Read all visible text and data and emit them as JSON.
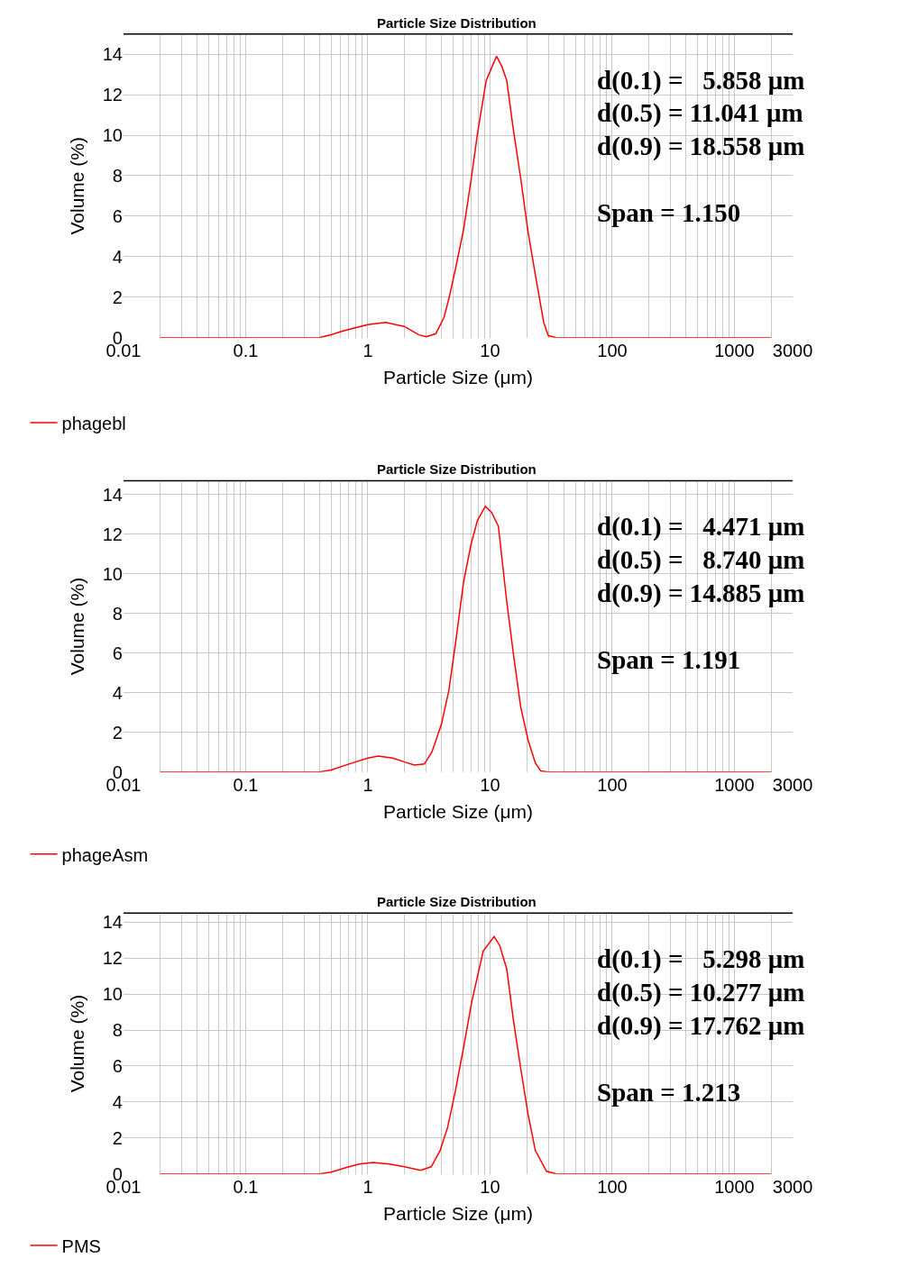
{
  "chart_data": [
    {
      "type": "line",
      "title": "Particle Size Distribution",
      "xlabel": "Particle Size (μm)",
      "ylabel": "Volume (%)",
      "log": "x",
      "xlim": [
        0.01,
        3000
      ],
      "xticks": [
        0.01,
        0.1,
        1,
        10,
        100,
        1000,
        3000
      ],
      "ylim": [
        0,
        15
      ],
      "yticks": [
        0,
        2,
        4,
        6,
        8,
        10,
        12,
        14
      ],
      "grid": true,
      "legend": "bottom",
      "marker": "none",
      "series": [
        {
          "name": "phagebl",
          "color": "#ff0000",
          "x": [
            0.02,
            0.4,
            0.5,
            0.6,
            0.8,
            1.0,
            1.4,
            2.0,
            2.6,
            3.0,
            3.6,
            4.2,
            4.62,
            5.3,
            6.08,
            7.0,
            7.9,
            9.3,
            11.3,
            12.5,
            13.7,
            15.5,
            17.8,
            20.5,
            23.5,
            27.5,
            30,
            35,
            2000
          ],
          "values": [
            0,
            0,
            0.15,
            0.3,
            0.5,
            0.65,
            0.76,
            0.55,
            0.15,
            0.05,
            0.2,
            1.0,
            1.96,
            3.6,
            5.36,
            7.8,
            10.1,
            12.7,
            13.9,
            13.4,
            12.7,
            10.3,
            7.9,
            5.2,
            3.1,
            0.76,
            0.1,
            0,
            0
          ]
        }
      ],
      "annotations": [
        "d(0.1) =   5.858 μm",
        "d(0.5) = 11.041 μm",
        "d(0.9) = 18.558 μm",
        "Span = 1.150"
      ]
    },
    {
      "type": "line",
      "title": "Particle Size Distribution",
      "xlabel": "Particle Size (μm)",
      "ylabel": "Volume (%)",
      "log": "x",
      "xlim": [
        0.01,
        3000
      ],
      "xticks": [
        0.01,
        0.1,
        1,
        10,
        100,
        1000,
        3000
      ],
      "ylim": [
        0,
        14.7
      ],
      "yticks": [
        0,
        2,
        4,
        6,
        8,
        10,
        12,
        14
      ],
      "grid": true,
      "legend": "bottom",
      "marker": "none",
      "series": [
        {
          "name": "phageAsm",
          "color": "#ff0000",
          "x": [
            0.02,
            0.4,
            0.5,
            0.7,
            1.0,
            1.22,
            1.6,
            2.0,
            2.4,
            2.9,
            3.34,
            4.0,
            4.6,
            5.3,
            6.08,
            7.0,
            7.9,
            9.15,
            10.3,
            11.7,
            13.7,
            15.5,
            17.8,
            20.5,
            23.5,
            26,
            30,
            2000
          ],
          "values": [
            0,
            0,
            0.1,
            0.4,
            0.7,
            0.8,
            0.7,
            0.5,
            0.35,
            0.4,
            1.0,
            2.4,
            4.1,
            6.8,
            9.6,
            11.5,
            12.7,
            13.4,
            13.1,
            12.4,
            8.6,
            6.0,
            3.3,
            1.6,
            0.45,
            0.05,
            0,
            0
          ]
        }
      ],
      "annotations": [
        "d(0.1) =   4.471 μm",
        "d(0.5) =   8.740 μm",
        "d(0.9) = 14.885 μm",
        "Span = 1.191"
      ]
    },
    {
      "type": "line",
      "title": "Particle Size Distribution",
      "xlabel": "Particle Size (μm)",
      "ylabel": "Volume (%)",
      "log": "x",
      "xlim": [
        0.01,
        3000
      ],
      "xticks": [
        0.01,
        0.1,
        1,
        10,
        100,
        1000,
        3000
      ],
      "ylim": [
        0,
        14.5
      ],
      "yticks": [
        0,
        2,
        4,
        6,
        8,
        10,
        12,
        14
      ],
      "grid": true,
      "legend": "bottom",
      "marker": "none",
      "series": [
        {
          "name": "PMS",
          "color": "#ff0000",
          "x": [
            0.02,
            0.4,
            0.5,
            0.7,
            0.85,
            1.1,
            1.5,
            2.0,
            2.7,
            3.3,
            3.9,
            4.5,
            5.2,
            6.1,
            7.1,
            8.8,
            10.8,
            12.0,
            13.7,
            15.5,
            17.8,
            20.5,
            23.5,
            29,
            35,
            2000
          ],
          "values": [
            0,
            0,
            0.1,
            0.4,
            0.55,
            0.64,
            0.55,
            0.4,
            0.2,
            0.4,
            1.3,
            2.6,
            4.6,
            7.1,
            9.6,
            12.4,
            13.2,
            12.7,
            11.4,
            8.6,
            5.9,
            3.3,
            1.3,
            0.15,
            0,
            0
          ]
        }
      ],
      "annotations": [
        "d(0.1) =   5.298 μm",
        "d(0.5) = 10.277 μm",
        "d(0.9) = 17.762 μm",
        "Span = 1.213"
      ]
    }
  ]
}
